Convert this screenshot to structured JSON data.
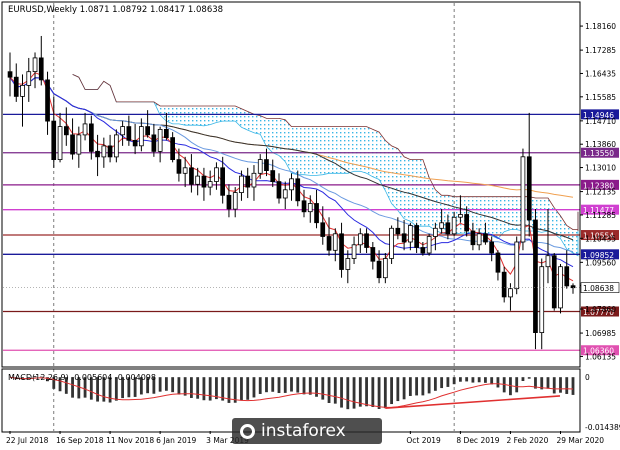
{
  "header": "EURUSD,Weekly  1.0871 1.08792 1.08417 1.08638",
  "watermark": "instaforex",
  "colors": {
    "bull": "#ffffff",
    "bear": "#000000",
    "grid": "#5a5a5a",
    "kumo": "#39b6e6",
    "kumo_edge": "#7a3030",
    "ma_fast": "#e03030",
    "ma_blue": "#2a2ae0",
    "ma_lightblue": "#6a9ae0",
    "ma_dark": "#333333",
    "ma_orange": "#f0a050",
    "macd_signal": "#e03030",
    "trend": "#e03030"
  },
  "chart_data": {
    "type": "candlestick",
    "title": "EURUSD,Weekly  1.0871 1.08792 1.08417 1.08638",
    "timeframe": "Weekly",
    "ohlc_last": {
      "open": 1.0871,
      "high": 1.08792,
      "low": 1.08417,
      "close": 1.08638
    },
    "y_ticks": [
      "1.18160",
      "1.17285",
      "1.16435",
      "1.15585",
      "1.14710",
      "1.13860",
      "1.13010",
      "1.12135",
      "1.11285",
      "1.10435",
      "1.09560",
      "1.08710",
      "1.07860",
      "1.06985",
      "1.06135"
    ],
    "ylim": [
      1.0575,
      1.19
    ],
    "x_ticks": [
      "22 Jul 2018",
      "16 Sep 2018",
      "11 Nov 2018",
      "6 Jan 2019",
      "3 Mar 2019",
      "Oct 2019",
      "8 Dec 2019",
      "2 Feb 2020",
      "29 Mar 2020"
    ],
    "x_tick_index": [
      0,
      8,
      16,
      24,
      32,
      64,
      72,
      80,
      88
    ],
    "vertical_lines_index": [
      7,
      71
    ],
    "horizontal_levels": [
      {
        "label": "1.14946",
        "value": 1.14946,
        "color": "#1a1a9a"
      },
      {
        "label": "1.13550",
        "value": 1.1355,
        "color": "#7a2a8a"
      },
      {
        "label": "1.12380",
        "value": 1.1238,
        "color": "#8a1a8a"
      },
      {
        "label": "1.11477",
        "value": 1.11477,
        "color": "#d040d0"
      },
      {
        "label": "1.10554",
        "value": 1.10554,
        "color": "#9a2a2a"
      },
      {
        "label": "1.09852",
        "value": 1.09852,
        "color": "#1a1a9a"
      },
      {
        "label": "1.07770",
        "value": 1.0777,
        "color": "#7a1a1a"
      },
      {
        "label": "1.06360",
        "value": 1.0636,
        "color": "#e050b0"
      }
    ],
    "current_price": {
      "label": "1.08638",
      "value": 1.08638
    },
    "candles": [
      [
        1.165,
        1.172,
        1.156,
        1.163
      ],
      [
        1.163,
        1.168,
        1.154,
        1.156
      ],
      [
        1.156,
        1.164,
        1.145,
        1.16
      ],
      [
        1.16,
        1.17,
        1.154,
        1.165
      ],
      [
        1.165,
        1.172,
        1.159,
        1.17
      ],
      [
        1.17,
        1.178,
        1.16,
        1.162
      ],
      [
        1.162,
        1.165,
        1.142,
        1.147
      ],
      [
        1.147,
        1.156,
        1.13,
        1.133
      ],
      [
        1.133,
        1.15,
        1.132,
        1.145
      ],
      [
        1.145,
        1.152,
        1.138,
        1.142
      ],
      [
        1.142,
        1.148,
        1.133,
        1.135
      ],
      [
        1.135,
        1.145,
        1.13,
        1.142
      ],
      [
        1.142,
        1.15,
        1.14,
        1.146
      ],
      [
        1.146,
        1.149,
        1.133,
        1.136
      ],
      [
        1.136,
        1.142,
        1.127,
        1.134
      ],
      [
        1.134,
        1.141,
        1.13,
        1.138
      ],
      [
        1.138,
        1.142,
        1.132,
        1.134
      ],
      [
        1.134,
        1.144,
        1.132,
        1.142
      ],
      [
        1.142,
        1.147,
        1.138,
        1.145
      ],
      [
        1.145,
        1.149,
        1.138,
        1.14
      ],
      [
        1.14,
        1.146,
        1.135,
        1.138
      ],
      [
        1.138,
        1.148,
        1.136,
        1.145
      ],
      [
        1.145,
        1.151,
        1.141,
        1.142
      ],
      [
        1.142,
        1.146,
        1.134,
        1.136
      ],
      [
        1.136,
        1.145,
        1.132,
        1.144
      ],
      [
        1.144,
        1.15,
        1.14,
        1.141
      ],
      [
        1.141,
        1.143,
        1.132,
        1.133
      ],
      [
        1.133,
        1.137,
        1.125,
        1.128
      ],
      [
        1.128,
        1.134,
        1.123,
        1.13
      ],
      [
        1.13,
        1.135,
        1.121,
        1.124
      ],
      [
        1.124,
        1.13,
        1.12,
        1.127
      ],
      [
        1.127,
        1.13,
        1.118,
        1.123
      ],
      [
        1.123,
        1.129,
        1.12,
        1.125
      ],
      [
        1.125,
        1.132,
        1.122,
        1.13
      ],
      [
        1.13,
        1.134,
        1.117,
        1.12
      ],
      [
        1.12,
        1.124,
        1.112,
        1.115
      ],
      [
        1.115,
        1.123,
        1.112,
        1.121
      ],
      [
        1.121,
        1.129,
        1.118,
        1.127
      ],
      [
        1.127,
        1.13,
        1.119,
        1.123
      ],
      [
        1.123,
        1.131,
        1.118,
        1.128
      ],
      [
        1.128,
        1.135,
        1.126,
        1.133
      ],
      [
        1.133,
        1.137,
        1.127,
        1.129
      ],
      [
        1.129,
        1.133,
        1.123,
        1.125
      ],
      [
        1.125,
        1.128,
        1.117,
        1.119
      ],
      [
        1.119,
        1.125,
        1.115,
        1.122
      ],
      [
        1.122,
        1.128,
        1.118,
        1.126
      ],
      [
        1.126,
        1.129,
        1.116,
        1.118
      ],
      [
        1.118,
        1.122,
        1.112,
        1.114
      ],
      [
        1.114,
        1.12,
        1.11,
        1.117
      ],
      [
        1.117,
        1.122,
        1.108,
        1.11
      ],
      [
        1.11,
        1.116,
        1.102,
        1.105
      ],
      [
        1.105,
        1.112,
        1.098,
        1.1
      ],
      [
        1.1,
        1.108,
        1.096,
        1.106
      ],
      [
        1.106,
        1.11,
        1.09,
        1.093
      ],
      [
        1.093,
        1.1,
        1.088,
        1.097
      ],
      [
        1.097,
        1.105,
        1.095,
        1.102
      ],
      [
        1.102,
        1.108,
        1.099,
        1.106
      ],
      [
        1.106,
        1.108,
        1.099,
        1.101
      ],
      [
        1.101,
        1.103,
        1.093,
        1.096
      ],
      [
        1.096,
        1.1,
        1.088,
        1.09
      ],
      [
        1.09,
        1.099,
        1.088,
        1.097
      ],
      [
        1.097,
        1.109,
        1.095,
        1.108
      ],
      [
        1.108,
        1.112,
        1.104,
        1.106
      ],
      [
        1.106,
        1.111,
        1.1,
        1.103
      ],
      [
        1.103,
        1.11,
        1.1,
        1.109
      ],
      [
        1.109,
        1.11,
        1.099,
        1.101
      ],
      [
        1.101,
        1.103,
        1.098,
        1.099
      ],
      [
        1.099,
        1.106,
        1.098,
        1.105
      ],
      [
        1.105,
        1.11,
        1.1,
        1.108
      ],
      [
        1.108,
        1.115,
        1.106,
        1.11
      ],
      [
        1.11,
        1.113,
        1.104,
        1.106
      ],
      [
        1.106,
        1.114,
        1.105,
        1.112
      ],
      [
        1.112,
        1.12,
        1.11,
        1.113
      ],
      [
        1.113,
        1.116,
        1.105,
        1.107
      ],
      [
        1.107,
        1.11,
        1.1,
        1.102
      ],
      [
        1.102,
        1.108,
        1.1,
        1.106
      ],
      [
        1.106,
        1.11,
        1.102,
        1.103
      ],
      [
        1.103,
        1.105,
        1.096,
        1.099
      ],
      [
        1.099,
        1.1,
        1.089,
        1.092
      ],
      [
        1.092,
        1.094,
        1.081,
        1.083
      ],
      [
        1.083,
        1.088,
        1.078,
        1.086
      ],
      [
        1.086,
        1.105,
        1.084,
        1.103
      ],
      [
        1.103,
        1.137,
        1.1,
        1.134
      ],
      [
        1.134,
        1.15,
        1.105,
        1.111
      ],
      [
        1.111,
        1.115,
        1.064,
        1.07
      ],
      [
        1.07,
        1.097,
        1.064,
        1.094
      ],
      [
        1.094,
        1.115,
        1.088,
        1.098
      ],
      [
        1.098,
        1.099,
        1.078,
        1.079
      ],
      [
        1.079,
        1.095,
        1.077,
        1.094
      ],
      [
        1.094,
        1.1,
        1.086,
        1.087
      ],
      [
        1.0871,
        1.08792,
        1.08417,
        1.08638
      ]
    ],
    "macd": {
      "label": "MACD(12,26,9) -0.005604 -0.004098",
      "scale_labels": [
        "0",
        "-0.014389"
      ],
      "range": [
        -0.015,
        0.002
      ]
    }
  }
}
